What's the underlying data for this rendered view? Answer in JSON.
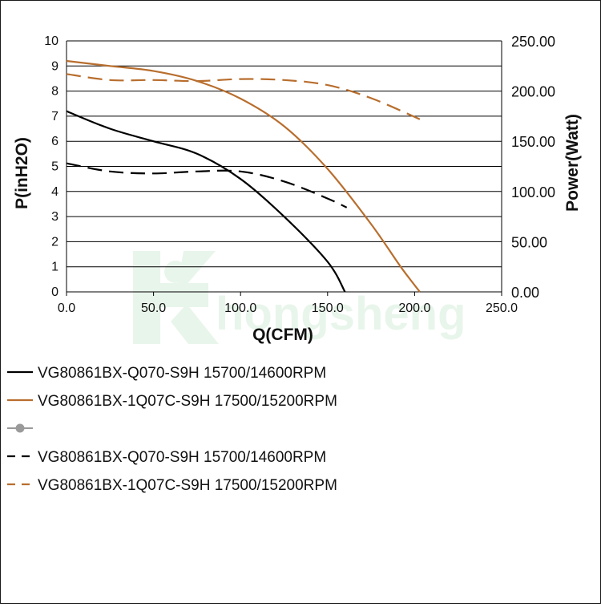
{
  "chart_data": {
    "type": "line",
    "title": "",
    "xlabel": "Q(CFM)",
    "ylabel": "P(inH2O)",
    "y2label": "Power(Watt)",
    "xlim": [
      0,
      250
    ],
    "ylim": [
      0,
      10
    ],
    "y2lim": [
      0,
      250
    ],
    "x_ticks": [
      "0.0",
      "50.0",
      "100.0",
      "150.0",
      "200.0",
      "250.0"
    ],
    "y_ticks": [
      "0",
      "1",
      "2",
      "3",
      "4",
      "5",
      "6",
      "7",
      "8",
      "9",
      "10"
    ],
    "y2_ticks": [
      "0.00",
      "50.00",
      "100.00",
      "150.00",
      "200.00",
      "250.00"
    ],
    "grid": "horizontal",
    "legend_position": "bottom",
    "watermark": "hongsheng",
    "series": [
      {
        "name": "VG80861BX-Q070-S9H 15700/14600RPM",
        "axis": "left",
        "style": "solid",
        "color": "#000000",
        "points": [
          [
            0,
            7.2
          ],
          [
            25,
            6.5
          ],
          [
            50,
            6.0
          ],
          [
            75,
            5.5
          ],
          [
            100,
            4.5
          ],
          [
            125,
            3.0
          ],
          [
            150,
            1.2
          ],
          [
            160,
            0
          ]
        ]
      },
      {
        "name": "VG80861BX-1Q07C-S9H 17500/15200RPM",
        "axis": "left",
        "style": "solid",
        "color": "#b86e2e",
        "points": [
          [
            0,
            9.2
          ],
          [
            25,
            9.0
          ],
          [
            50,
            8.8
          ],
          [
            75,
            8.4
          ],
          [
            100,
            7.7
          ],
          [
            125,
            6.6
          ],
          [
            150,
            4.9
          ],
          [
            175,
            2.7
          ],
          [
            192,
            1.0
          ],
          [
            203,
            0
          ]
        ]
      },
      {
        "name": "",
        "axis": "none",
        "style": "marker",
        "color": "#9a9a9a",
        "points": []
      },
      {
        "name": "VG80861BX-Q070-S9H 15700/14600RPM",
        "axis": "right",
        "style": "dashed",
        "color": "#000000",
        "points": [
          [
            0,
            128
          ],
          [
            25,
            120
          ],
          [
            50,
            118
          ],
          [
            75,
            120
          ],
          [
            100,
            120
          ],
          [
            125,
            110
          ],
          [
            150,
            93
          ],
          [
            161,
            84
          ]
        ]
      },
      {
        "name": "VG80861BX-1Q07C-S9H 17500/15200RPM",
        "axis": "right",
        "style": "dashed",
        "color": "#b86e2e",
        "points": [
          [
            0,
            217
          ],
          [
            25,
            211
          ],
          [
            50,
            211
          ],
          [
            75,
            210
          ],
          [
            100,
            212
          ],
          [
            125,
            211
          ],
          [
            150,
            206
          ],
          [
            175,
            193
          ],
          [
            203,
            172
          ]
        ]
      }
    ]
  }
}
